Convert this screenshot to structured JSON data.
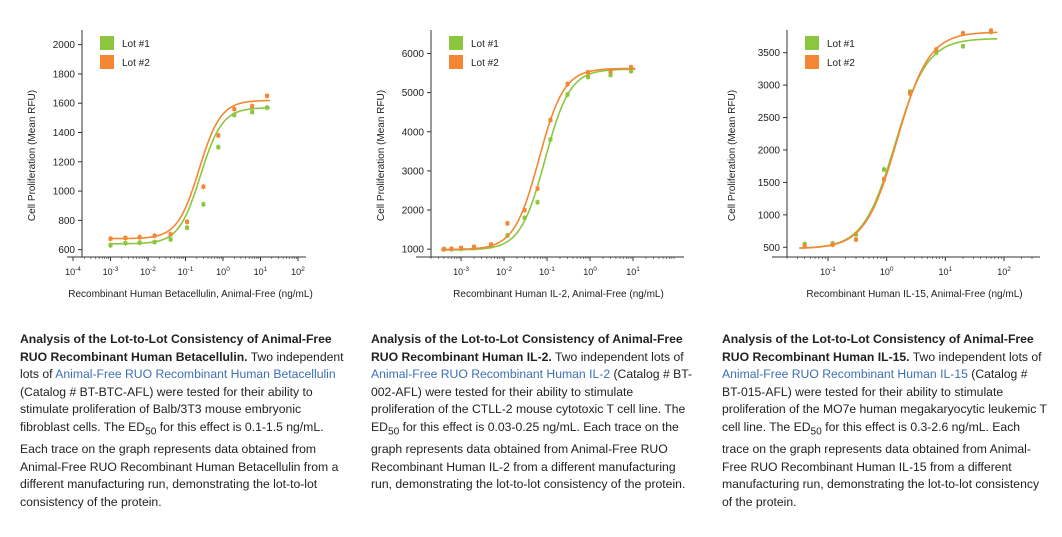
{
  "colors": {
    "lot1": "#8cc63f",
    "lot2": "#f58634",
    "link": "#3d6fb6",
    "axis": "#333333"
  },
  "chart_data": [
    {
      "type": "line",
      "x_scale": "log",
      "xlabel": "Recombinant Human Betacellulin, Animal-Free (ng/mL)",
      "ylabel": "Cell Proliferation (Mean RFU)",
      "xlim": [
        0.0001,
        100
      ],
      "ylim": [
        550,
        2100
      ],
      "yticks": [
        600,
        800,
        1000,
        1200,
        1400,
        1600,
        1800,
        2000
      ],
      "xticks": [
        0.0001,
        0.001,
        0.01,
        0.1,
        1,
        10,
        100
      ],
      "xtick_labels": [
        {
          "base": "10",
          "exp": "-4"
        },
        {
          "base": "10",
          "exp": "-3"
        },
        {
          "base": "10",
          "exp": "-2"
        },
        {
          "base": "10",
          "exp": "-1"
        },
        {
          "base": "10",
          "exp": "0"
        },
        {
          "base": "10",
          "exp": "1"
        },
        {
          "base": "10",
          "exp": "2"
        }
      ],
      "legend": "top-left",
      "series": [
        {
          "name": "Lot #1",
          "color": "#8cc63f",
          "x": [
            0.001,
            0.0025,
            0.006,
            0.015,
            0.04,
            0.11,
            0.3,
            0.75,
            2,
            6,
            15
          ],
          "y": [
            630,
            645,
            648,
            652,
            670,
            750,
            910,
            1300,
            1520,
            1540,
            1570
          ],
          "fit": {
            "bottom": 640,
            "top": 1570,
            "ec50": 0.25,
            "hill": 1.5
          }
        },
        {
          "name": "Lot #2",
          "color": "#f58634",
          "x": [
            0.001,
            0.0025,
            0.006,
            0.015,
            0.04,
            0.11,
            0.3,
            0.75,
            2,
            6,
            15
          ],
          "y": [
            675,
            680,
            685,
            695,
            705,
            790,
            1030,
            1380,
            1560,
            1580,
            1650
          ],
          "fit": {
            "bottom": 675,
            "top": 1620,
            "ec50": 0.23,
            "hill": 1.5
          }
        }
      ]
    },
    {
      "type": "line",
      "x_scale": "log",
      "xlabel": "Recombinant Human IL-2, Animal-Free (ng/mL)",
      "ylabel": "Cell Proliferation (Mean RFU)",
      "xlim": [
        0.0002,
        100
      ],
      "ylim": [
        800,
        6600
      ],
      "yticks": [
        1000,
        2000,
        3000,
        4000,
        5000,
        6000
      ],
      "xticks": [
        0.001,
        0.01,
        0.1,
        1,
        10
      ],
      "xtick_labels": [
        {
          "base": "10",
          "exp": "-3"
        },
        {
          "base": "10",
          "exp": "-2"
        },
        {
          "base": "10",
          "exp": "-1"
        },
        {
          "base": "10",
          "exp": "0"
        },
        {
          "base": "10",
          "exp": "1"
        }
      ],
      "legend": "top-left",
      "series": [
        {
          "name": "Lot #1",
          "color": "#8cc63f",
          "x": [
            0.0004,
            0.0006,
            0.001,
            0.002,
            0.005,
            0.012,
            0.03,
            0.06,
            0.12,
            0.3,
            0.9,
            3,
            9
          ],
          "y": [
            1000,
            1000,
            1010,
            1030,
            1080,
            1350,
            1800,
            2200,
            3800,
            4950,
            5400,
            5450,
            5550
          ],
          "fit": {
            "bottom": 980,
            "top": 5600,
            "ec50": 0.09,
            "hill": 1.5
          }
        },
        {
          "name": "Lot #2",
          "color": "#f58634",
          "x": [
            0.0004,
            0.0006,
            0.001,
            0.002,
            0.005,
            0.012,
            0.03,
            0.06,
            0.12,
            0.3,
            0.9,
            3,
            9
          ],
          "y": [
            1000,
            1010,
            1030,
            1060,
            1120,
            1660,
            2000,
            2550,
            4300,
            5220,
            5520,
            5550,
            5650
          ],
          "fit": {
            "bottom": 990,
            "top": 5620,
            "ec50": 0.065,
            "hill": 1.5
          }
        }
      ]
    },
    {
      "type": "line",
      "x_scale": "log",
      "xlabel": "Recombinant Human IL-15, Animal-Free (ng/mL)",
      "ylabel": "Cell Proliferation (Mean RFU)",
      "xlim": [
        0.02,
        300
      ],
      "ylim": [
        350,
        3850
      ],
      "yticks": [
        500,
        1000,
        1500,
        2000,
        2500,
        3000,
        3500
      ],
      "xticks": [
        0.1,
        1,
        10,
        100
      ],
      "xtick_labels": [
        {
          "base": "10",
          "exp": "-1"
        },
        {
          "base": "10",
          "exp": "0"
        },
        {
          "base": "10",
          "exp": "1"
        },
        {
          "base": "10",
          "exp": "2"
        }
      ],
      "legend": "top-left",
      "series": [
        {
          "name": "Lot #1",
          "color": "#8cc63f",
          "x": [
            0.04,
            0.12,
            0.3,
            0.9,
            2.5,
            7,
            20,
            60
          ],
          "y": [
            550,
            560,
            700,
            1700,
            2900,
            3500,
            3600,
            3820
          ],
          "fit": {
            "bottom": 480,
            "top": 3720,
            "ec50": 1.4,
            "hill": 1.6
          }
        },
        {
          "name": "Lot #2",
          "color": "#f58634",
          "x": [
            0.04,
            0.12,
            0.3,
            0.9,
            2.5,
            7,
            20,
            60
          ],
          "y": [
            520,
            540,
            620,
            1550,
            2870,
            3550,
            3800,
            3840
          ],
          "fit": {
            "bottom": 480,
            "top": 3820,
            "ec50": 1.5,
            "hill": 1.6
          }
        }
      ]
    }
  ],
  "captions": [
    {
      "title": "Analysis of the Lot-to-Lot Consistency of Animal-Free RUO Recombinant Human Betacellulin.",
      "text1": " Two independent lots of ",
      "link": "Animal-Free RUO Recombinant Human Betacellulin",
      "text2": " (Catalog # BT-BTC-AFL) were tested for their ability to stimulate proliferation of Balb/3T3 mouse embryonic fibroblast cells. The ED",
      "sub": "50",
      "text3": " for this effect is 0.1-1.5 ng/mL. Each trace on the graph represents data obtained from Animal-Free RUO Recombinant Human Betacellulin from a different manufacturing run, demonstrating the lot-to-lot consistency of the protein."
    },
    {
      "title": "Analysis of the Lot-to-Lot Consistency of Animal-Free RUO Recombinant Human IL-2.",
      "text1": " Two independent lots of ",
      "link": "Animal-Free RUO Recombinant Human IL-2",
      "text2": " (Catalog # BT-002-AFL) were tested for their ability to stimulate proliferation of the CTLL-2 mouse cytotoxic T cell line. The ED",
      "sub": "50",
      "text3": " for this effect is 0.03-0.25 ng/mL. Each trace on the graph represents data obtained from Animal-Free RUO Recombinant Human IL-2 from a different manufacturing run, demonstrating the lot-to-lot consistency of the protein."
    },
    {
      "title": "Analysis of the Lot-to-Lot Consistency of Animal-Free RUO Recombinant Human IL-15.",
      "text1": " Two independent lots of ",
      "link": "Animal-Free RUO Recombinant Human IL-15",
      "text2": " (Catalog # BT-015-AFL) were tested for their ability to stimulate proliferation of the MO7e human megakaryocytic leukemic T cell line. The ED",
      "sub": "50",
      "text3": " for this effect is 0.3-2.6 ng/mL. Each trace on the graph represents data obtained from Animal-Free RUO Recombinant Human IL-15 from a different manufacturing run, demonstrating the lot-to-lot consistency of the protein."
    }
  ]
}
